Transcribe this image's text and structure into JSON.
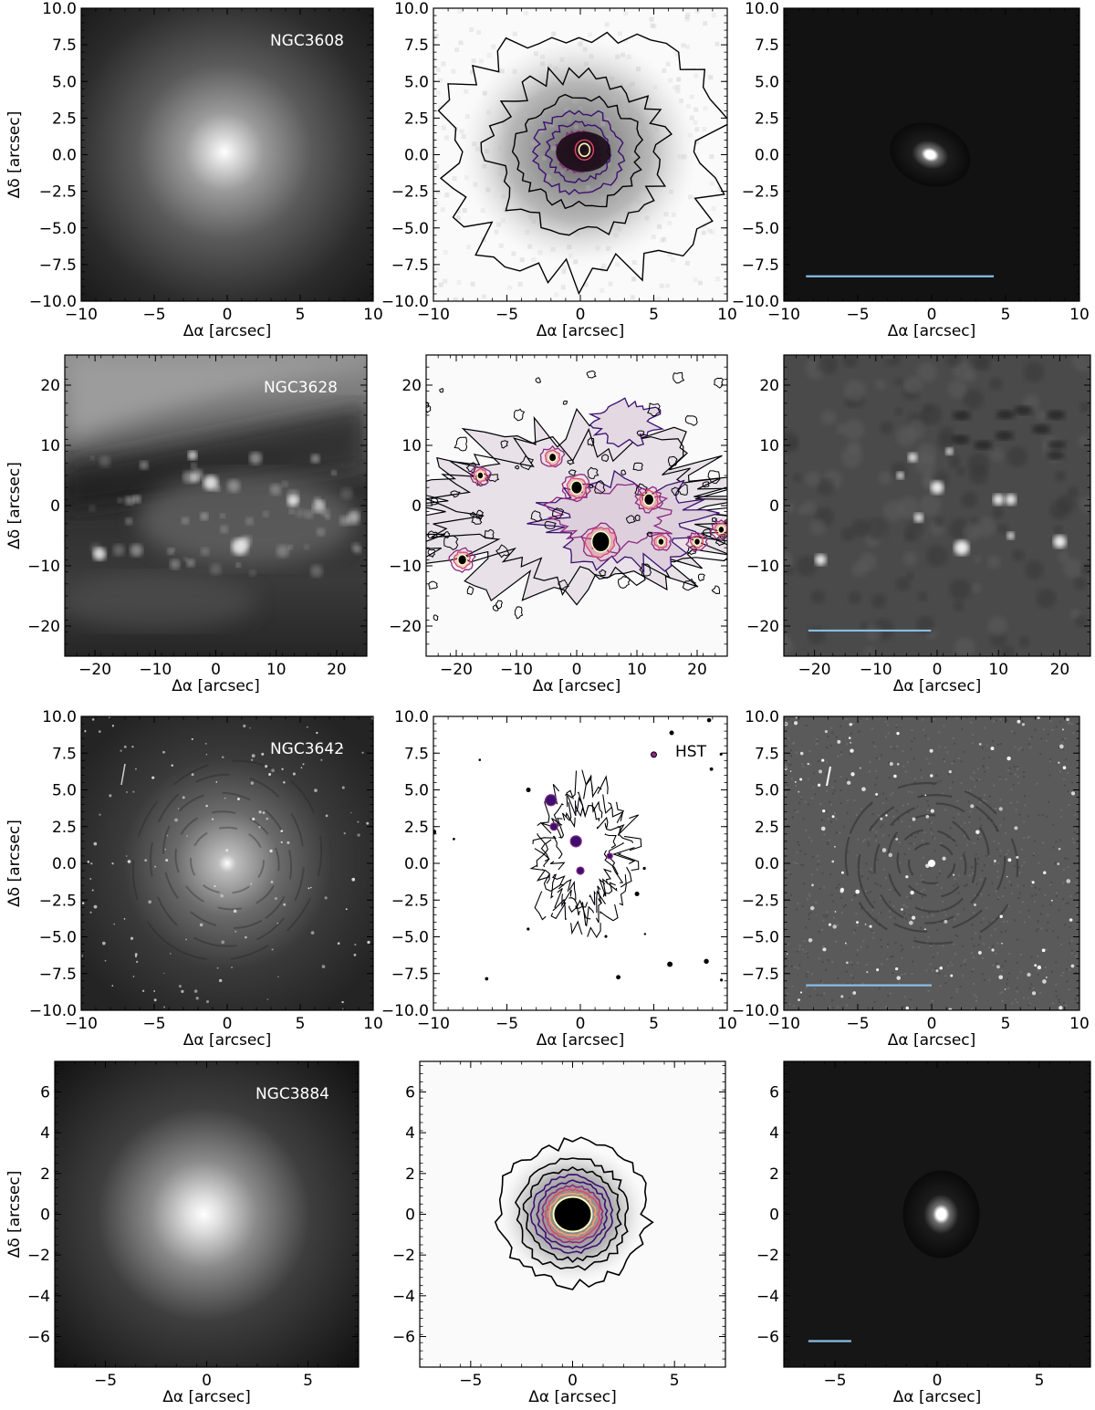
{
  "figure": {
    "x_label": "Δα [arcsec]",
    "y_label": "Δδ [arcsec]",
    "scalebar_color": "#87bfe6",
    "contour_palette": [
      "#000004",
      "#3b0f70",
      "#8c2981",
      "#de4968",
      "#fe9f6d",
      "#fcfdbf"
    ],
    "rows": [
      {
        "galaxy": "NGC3608",
        "extent": 10,
        "ticks": [
          -10,
          -5,
          0,
          5,
          10
        ],
        "y_ticks": [
          "10.0",
          "7.5",
          "5.0",
          "2.5",
          "0.0",
          "−2.5",
          "−5.0",
          "−7.5",
          "−10.0"
        ],
        "x_ticks": [
          "−10",
          "−5",
          "0",
          "5",
          "10"
        ],
        "scalebar": [
          -8.5,
          4.2
        ],
        "contour_label": ""
      },
      {
        "galaxy": "NGC3628",
        "extent": 25,
        "ticks": [
          -20,
          -10,
          0,
          10,
          20
        ],
        "y_ticks": [
          "20",
          "10",
          "0",
          "−10",
          "−20"
        ],
        "x_ticks": [
          "−20",
          "−10",
          "0",
          "10",
          "20"
        ],
        "scalebar": [
          -21,
          -1
        ],
        "contour_label": ""
      },
      {
        "galaxy": "NGC3642",
        "extent": 10,
        "ticks": [
          -10,
          -5,
          0,
          5,
          10
        ],
        "y_ticks": [
          "10.0",
          "7.5",
          "5.0",
          "2.5",
          "0.0",
          "−2.5",
          "−5.0",
          "−7.5",
          "−10.0"
        ],
        "x_ticks": [
          "−10",
          "−5",
          "0",
          "5",
          "10"
        ],
        "scalebar": [
          -8.5,
          0
        ],
        "contour_label": "HST"
      },
      {
        "galaxy": "NGC3884",
        "extent": 7.5,
        "ticks": [
          -5,
          0,
          5
        ],
        "y_ticks": [
          "6",
          "4",
          "2",
          "0",
          "−2",
          "−4",
          "−6"
        ],
        "x_ticks": [
          "−5",
          "0",
          "5"
        ],
        "scalebar": [
          -6.3,
          -4.2
        ],
        "contour_label": ""
      }
    ]
  }
}
